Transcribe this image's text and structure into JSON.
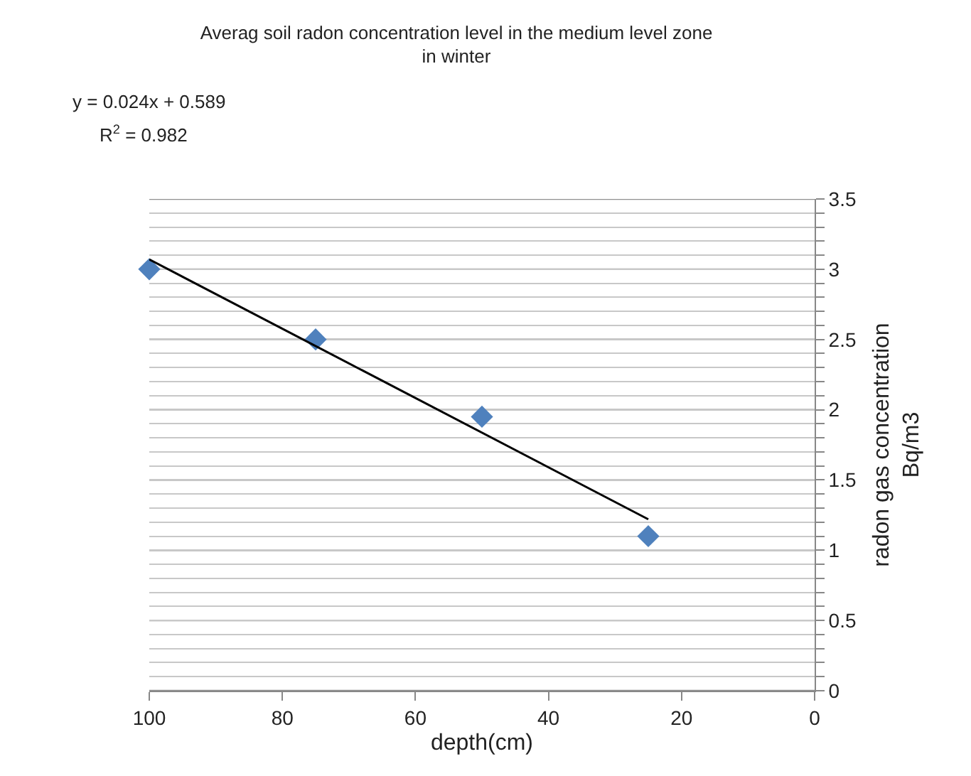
{
  "chart_data": {
    "type": "scatter",
    "title": "Averag soil radon concentration level in the medium level zone in winter",
    "xlabel": "depth(cm)",
    "ylabel": "radon gas concentration Bq/m3",
    "x": [
      100,
      75,
      50,
      25
    ],
    "series": [
      {
        "color": "#4f81bd",
        "values": [
          3.0,
          2.5,
          1.95,
          1.1
        ],
        "marker": "diamond"
      },
      {
        "type": "line",
        "color": "#000000",
        "x": [
          100,
          25
        ],
        "values": [
          3.07,
          1.22
        ],
        "marker": "none"
      }
    ],
    "xlim": [
      100,
      0
    ],
    "xticks": [
      100,
      80,
      60,
      40,
      20,
      0
    ],
    "ylim": [
      0,
      3.5
    ],
    "yticks": [
      0,
      {
        "value": 0.1,
        "label": null
      },
      {
        "value": 0.2,
        "label": null
      },
      {
        "value": 0.3,
        "label": null
      },
      {
        "value": 0.4,
        "label": null
      },
      0.5,
      {
        "value": 0.6,
        "label": null
      },
      {
        "value": 0.7,
        "label": null
      },
      {
        "value": 0.8,
        "label": null
      },
      {
        "value": 0.9,
        "label": null
      },
      1,
      {
        "value": 1.1,
        "label": null
      },
      {
        "value": 1.2,
        "label": null
      },
      {
        "value": 1.3,
        "label": null
      },
      {
        "value": 1.4,
        "label": null
      },
      1.5,
      {
        "value": 1.6,
        "label": null
      },
      {
        "value": 1.7,
        "label": null
      },
      {
        "value": 1.8,
        "label": null
      },
      {
        "value": 1.9,
        "label": null
      },
      2,
      {
        "value": 2.1,
        "label": null
      },
      {
        "value": 2.2,
        "label": null
      },
      {
        "value": 2.3,
        "label": null
      },
      {
        "value": 2.4,
        "label": null
      },
      2.5,
      {
        "value": 2.6,
        "label": null
      },
      {
        "value": 2.7,
        "label": null
      },
      {
        "value": 2.8,
        "label": null
      },
      {
        "value": 2.9,
        "label": null
      },
      3,
      {
        "value": 3.1,
        "label": null
      },
      {
        "value": 3.2,
        "label": null
      },
      {
        "value": 3.3,
        "label": null
      },
      {
        "value": 3.4,
        "label": null
      },
      3.5
    ],
    "grid": "y",
    "annotations": [
      "y = 0.024x + 0.589",
      "R$^{2}$ = 0.982"
    ]
  }
}
